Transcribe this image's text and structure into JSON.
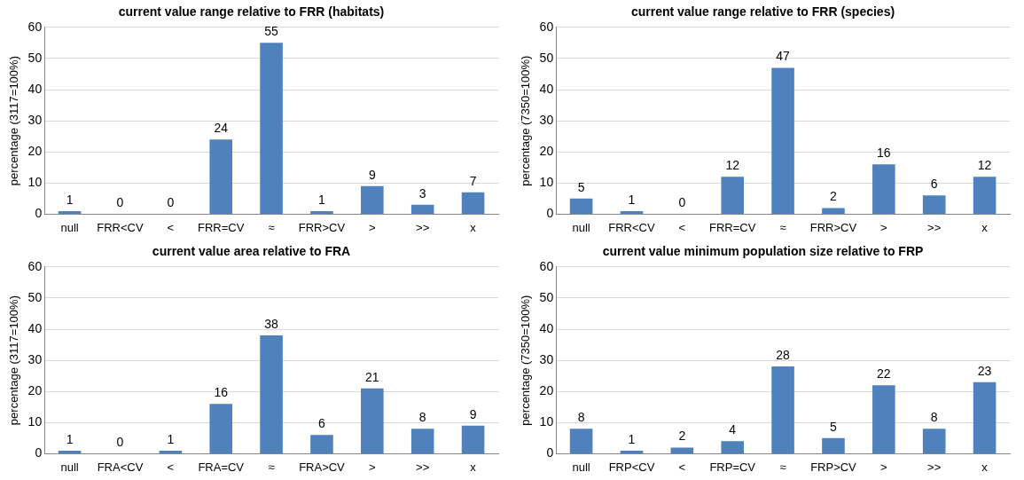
{
  "chart_data": [
    {
      "type": "bar",
      "title": "current value range relative to FRR (habitats)",
      "ylabel": "percentage (3117=100%)",
      "categories": [
        "null",
        "FRR<CV",
        "<",
        "FRR=CV",
        "≈",
        "FRR>CV",
        ">",
        ">>",
        "x"
      ],
      "values": [
        1,
        0,
        0,
        24,
        55,
        1,
        9,
        3,
        7
      ],
      "color": "#4f81bd",
      "ylim": [
        0,
        60
      ],
      "yticks": [
        0,
        10,
        20,
        30,
        40,
        50,
        60
      ],
      "grid": "y",
      "data_labels": true
    },
    {
      "type": "bar",
      "title": "current value range relative to FRR (species)",
      "ylabel": "percentage (7350=100%)",
      "categories": [
        "null",
        "FRR<CV",
        "<",
        "FRR=CV",
        "≈",
        "FRR>CV",
        ">",
        ">>",
        "x"
      ],
      "values": [
        5,
        1,
        0,
        12,
        47,
        2,
        16,
        6,
        12
      ],
      "color": "#4f81bd",
      "ylim": [
        0,
        60
      ],
      "yticks": [
        0,
        10,
        20,
        30,
        40,
        50,
        60
      ],
      "grid": "y",
      "data_labels": true
    },
    {
      "type": "bar",
      "title": "current value area relative to FRA",
      "ylabel": "percentage (3117=100%)",
      "categories": [
        "null",
        "FRA<CV",
        "<",
        "FRA=CV",
        "≈",
        "FRA>CV",
        ">",
        ">>",
        "x"
      ],
      "values": [
        1,
        0,
        1,
        16,
        38,
        6,
        21,
        8,
        9
      ],
      "color": "#4f81bd",
      "ylim": [
        0,
        60
      ],
      "yticks": [
        0,
        10,
        20,
        30,
        40,
        50,
        60
      ],
      "grid": "y",
      "data_labels": true
    },
    {
      "type": "bar",
      "title": "current value minimum population size relative to FRP",
      "ylabel": "percentage (7350=100%)",
      "categories": [
        "null",
        "FRP<CV",
        "<",
        "FRP=CV",
        "≈",
        "FRP>CV",
        ">",
        ">>",
        "x"
      ],
      "values": [
        8,
        1,
        2,
        4,
        28,
        5,
        22,
        8,
        23
      ],
      "color": "#4f81bd",
      "ylim": [
        0,
        60
      ],
      "yticks": [
        0,
        10,
        20,
        30,
        40,
        50,
        60
      ],
      "grid": "y",
      "data_labels": true
    }
  ]
}
